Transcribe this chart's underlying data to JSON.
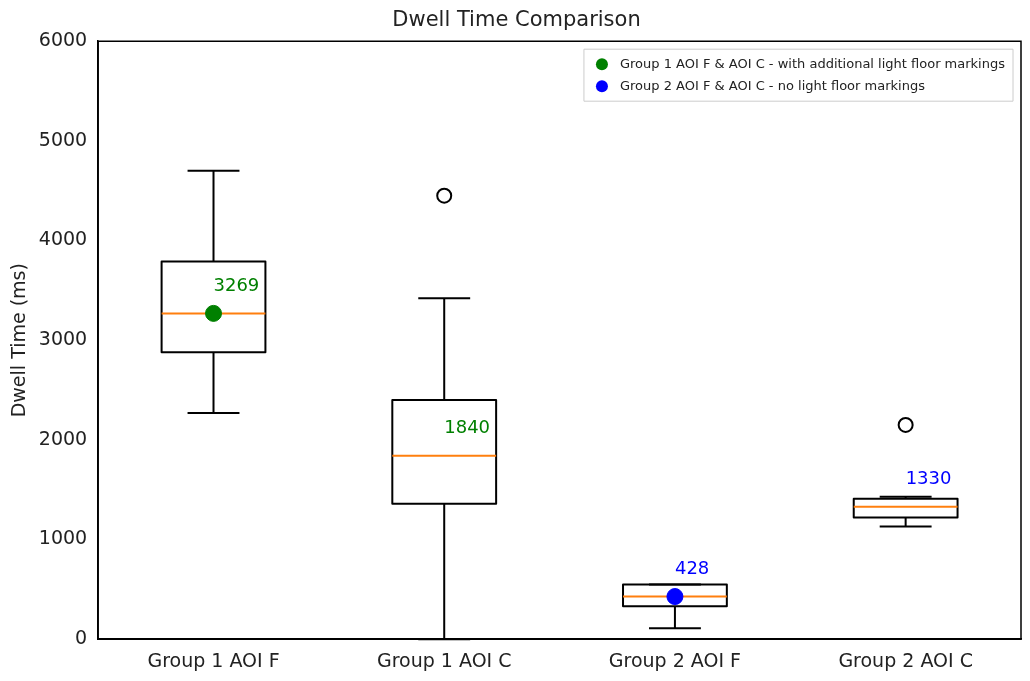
{
  "chart_data": {
    "type": "box",
    "title": "Dwell Time Comparison",
    "ylabel": "Dwell Time (ms)",
    "categories": [
      "Group 1 AOI F",
      "Group 1 AOI C",
      "Group 2 AOI F",
      "Group 2 AOI C"
    ],
    "boxes": [
      {
        "low": 2270,
        "q1": 2880,
        "median": 3269,
        "q3": 3790,
        "high": 4700
      },
      {
        "low": 0,
        "q1": 1360,
        "median": 1840,
        "q3": 2400,
        "high": 3420,
        "outliers": [
          4450
        ]
      },
      {
        "low": 110,
        "q1": 330,
        "median": 428,
        "q3": 550,
        "high": 550
      },
      {
        "low": 1130,
        "q1": 1220,
        "median": 1330,
        "q3": 1410,
        "high": 1430,
        "outliers": [
          2150
        ]
      }
    ],
    "color": "#000000",
    "series": [
      {
        "type": "scatter",
        "name": "Group 1 AOI F & AOI C - with additional light floor markings",
        "color": "#008000",
        "x": [
          "Group 1 AOI F"
        ],
        "values": [
          3269
        ]
      },
      {
        "type": "scatter",
        "name": "Group 2 AOI F & AOI C - no light floor markings",
        "color": "#0000ff",
        "x": [
          "Group 2 AOI F"
        ],
        "values": [
          428
        ]
      }
    ],
    "annotations": [
      {
        "text": "3269",
        "x": "Group 1 AOI F",
        "y": 3269
      },
      {
        "text": "1840",
        "x": "Group 1 AOI C",
        "y": 1840
      },
      {
        "text": "428",
        "x": "Group 2 AOI F",
        "y": 428
      },
      {
        "text": "1330",
        "x": "Group 2 AOI C",
        "y": 1330
      }
    ],
    "ylim": [
      0,
      6000
    ],
    "yticks": [
      0,
      1000,
      2000,
      3000,
      4000,
      5000,
      6000
    ],
    "grid": false,
    "legend": "top right",
    "marker": "circle"
  }
}
